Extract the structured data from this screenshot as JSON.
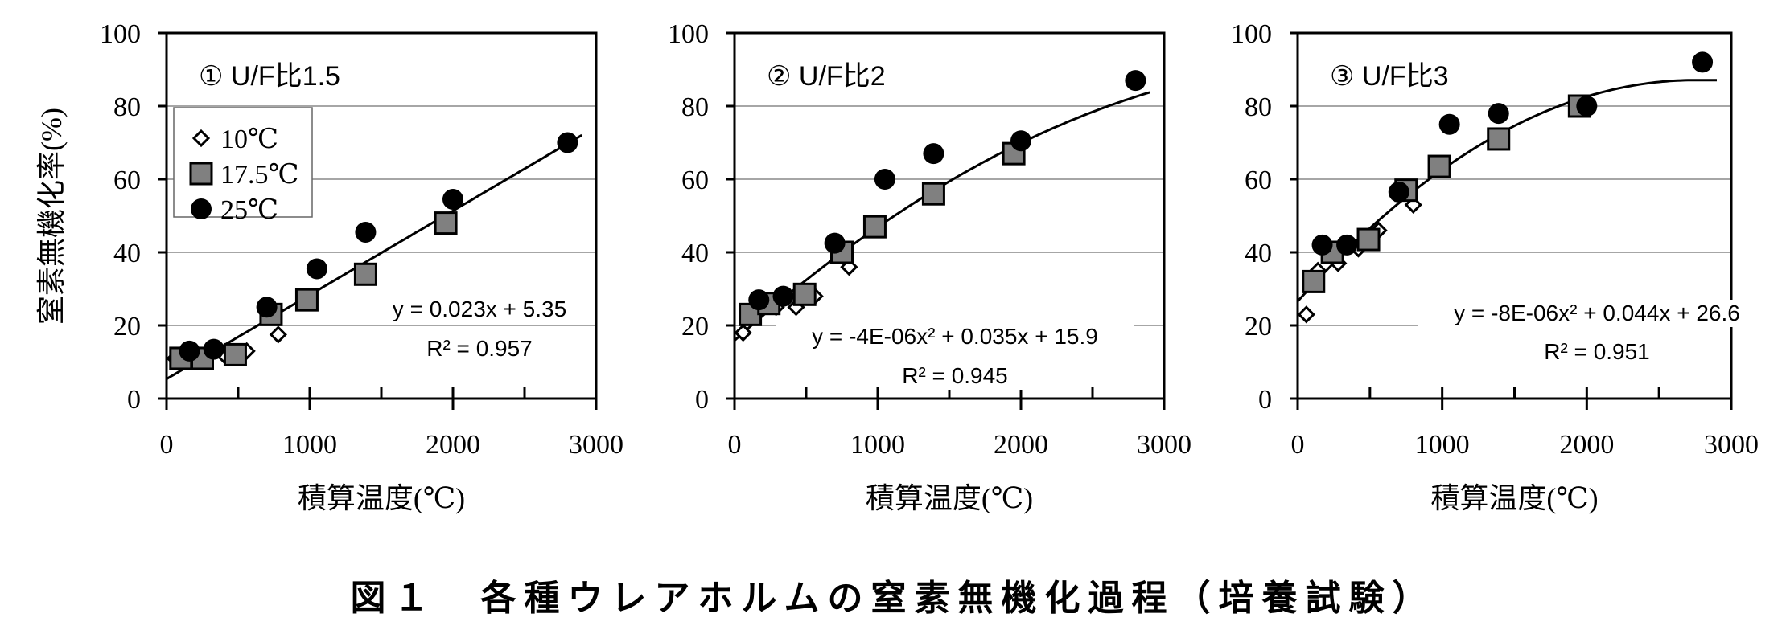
{
  "figure_title": "図１　各種ウレアホルムの窒素無機化過程（培養試験）",
  "colors": {
    "square_fill": "#808080",
    "axis": "#000000",
    "grid": "#888888"
  },
  "chart_data": [
    {
      "type": "scatter",
      "title": "①  U/F比1.5",
      "xlabel": "積算温度(℃)",
      "ylabel": "窒素無機化率(%)",
      "xlim": [
        0,
        3000
      ],
      "ylim": [
        0,
        100
      ],
      "xticks": [
        "0",
        "1000",
        "2000",
        "3000"
      ],
      "yticks": [
        "0",
        "20",
        "40",
        "60",
        "80",
        "100"
      ],
      "grid": true,
      "legend": {
        "placement": "top-left",
        "entries": [
          "10℃",
          "17.5℃",
          "25℃"
        ]
      },
      "series": [
        {
          "name": "10℃",
          "marker": "diamond",
          "x": [
            60,
            400,
            560,
            780
          ],
          "y": [
            11,
            12,
            13,
            17.5
          ]
        },
        {
          "name": "17.5℃",
          "marker": "square",
          "x": [
            100,
            250,
            480,
            730,
            980,
            1390,
            1950
          ],
          "y": [
            11,
            11,
            12,
            23,
            27,
            34,
            48
          ]
        },
        {
          "name": "25℃",
          "marker": "circle",
          "x": [
            160,
            330,
            700,
            1050,
            1390,
            2000,
            2800
          ],
          "y": [
            13,
            13.5,
            25,
            35.5,
            45.5,
            54.5,
            70
          ]
        }
      ],
      "trend": {
        "coef": [
          0,
          0.023,
          5.35
        ],
        "xrange": [
          0,
          2900
        ],
        "equation": "y = 0.023x + 5.35",
        "r2": "R² = 0.957"
      }
    },
    {
      "type": "scatter",
      "title": "②  U/F比2",
      "xlabel": "積算温度(℃)",
      "ylabel": "",
      "xlim": [
        0,
        3000
      ],
      "ylim": [
        0,
        100
      ],
      "xticks": [
        "0",
        "1000",
        "2000",
        "3000"
      ],
      "yticks": [
        "0",
        "20",
        "40",
        "60",
        "80",
        "100"
      ],
      "grid": true,
      "series": [
        {
          "name": "10℃",
          "marker": "diamond",
          "x": [
            60,
            290,
            430,
            560,
            800
          ],
          "y": [
            18,
            25,
            25,
            28,
            36
          ]
        },
        {
          "name": "17.5℃",
          "marker": "square",
          "x": [
            110,
            240,
            490,
            750,
            980,
            1390,
            1950
          ],
          "y": [
            23,
            26,
            28.5,
            40,
            47,
            56,
            67
          ]
        },
        {
          "name": "25℃",
          "marker": "circle",
          "x": [
            170,
            340,
            700,
            1050,
            1390,
            2000,
            2800
          ],
          "y": [
            27,
            28,
            42.5,
            60,
            67,
            70.5,
            87
          ]
        }
      ],
      "trend": {
        "coef": [
          -4e-06,
          0.035,
          15.9
        ],
        "xrange": [
          0,
          2900
        ],
        "equation": "y = -4E-06x² + 0.035x + 15.9",
        "r2": "R² = 0.945"
      }
    },
    {
      "type": "scatter",
      "title": "③  U/F比3",
      "xlabel": "積算温度(℃)",
      "ylabel": "",
      "xlim": [
        0,
        3000
      ],
      "ylim": [
        0,
        100
      ],
      "xticks": [
        "0",
        "1000",
        "2000",
        "3000"
      ],
      "yticks": [
        "0",
        "20",
        "40",
        "60",
        "80",
        "100"
      ],
      "grid": true,
      "series": [
        {
          "name": "10℃",
          "marker": "diamond",
          "x": [
            60,
            140,
            280,
            420,
            560,
            800
          ],
          "y": [
            23,
            35,
            37,
            41,
            46,
            53
          ]
        },
        {
          "name": "17.5℃",
          "marker": "square",
          "x": [
            110,
            240,
            490,
            750,
            980,
            1390,
            1950
          ],
          "y": [
            32,
            40,
            43.5,
            57,
            63.5,
            71,
            80
          ]
        },
        {
          "name": "25℃",
          "marker": "circle",
          "x": [
            170,
            340,
            700,
            1050,
            1390,
            2000,
            2800
          ],
          "y": [
            42,
            42,
            56.5,
            75,
            78,
            80,
            92
          ]
        }
      ],
      "trend": {
        "coef": [
          -8e-06,
          0.044,
          26.6
        ],
        "xrange": [
          0,
          2900
        ],
        "equation": "y = -8E-06x² + 0.044x + 26.6",
        "r2": "R² = 0.951"
      }
    }
  ]
}
